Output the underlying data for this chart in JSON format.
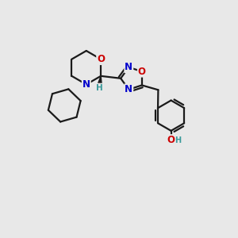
{
  "background_color": "#e8e8e8",
  "bond_color": "#1a1a1a",
  "bond_width": 1.6,
  "atom_colors": {
    "O": "#cc0000",
    "N": "#0000cc",
    "H": "#3a9a9a",
    "C": "#1a1a1a"
  },
  "font_size": 8.5,
  "fig_size": [
    3.0,
    3.0
  ],
  "dpi": 100
}
